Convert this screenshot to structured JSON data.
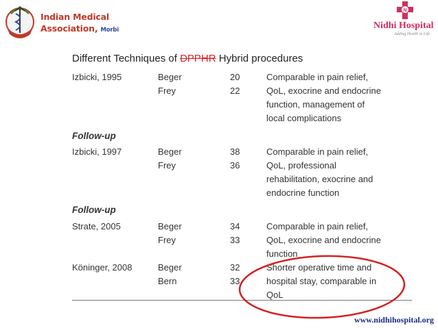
{
  "header": {
    "ima": {
      "line1": "Indian Medical",
      "line2": "Association,",
      "city": "Morbi",
      "emblem_icon": "ima-emblem-icon"
    },
    "hospital": {
      "name": "Nidhi Hospital",
      "tagline": "Adding Health to Life",
      "logo_icon": "nidhi-cross-icon",
      "brand_color": "#cf2f5d"
    }
  },
  "title": {
    "prefix": "Different Techniques of",
    "struck": "DPPHR",
    "suffix": "Hybrid procedures"
  },
  "sections": [
    {
      "heading": "",
      "study": "Izbicki, 1995",
      "techniques": [
        "Beger",
        "Frey"
      ],
      "numbers": [
        "20",
        "22"
      ],
      "result": [
        "Comparable in pain relief,",
        "QoL, exocrine and endocrine",
        "function, management of",
        "local complications"
      ]
    },
    {
      "heading": "Follow-up",
      "study": "Izbicki, 1997",
      "techniques": [
        "Beger",
        "Frey"
      ],
      "numbers": [
        "38",
        "36"
      ],
      "result": [
        "Comparable in pain relief,",
        "QoL, professional",
        "rehabilitation, exocrine and",
        "endocrine function"
      ]
    },
    {
      "heading": "Follow-up",
      "study": "Strate, 2005",
      "techniques": [
        "Beger",
        "Frey"
      ],
      "numbers": [
        "34",
        "33"
      ],
      "result": [
        "Comparable in pain relief,",
        "QoL, exocrine and endocrine",
        "function"
      ]
    },
    {
      "heading": "",
      "study": "Köninger, 2008",
      "techniques": [
        "Beger",
        "Bern"
      ],
      "numbers": [
        "32",
        "33"
      ],
      "result": [
        "Shorter operative time and",
        "hospital stay, comparable in",
        "QoL"
      ]
    }
  ],
  "highlight_color": "#d62020",
  "footer": {
    "url": "www.nidhihospital.org"
  }
}
